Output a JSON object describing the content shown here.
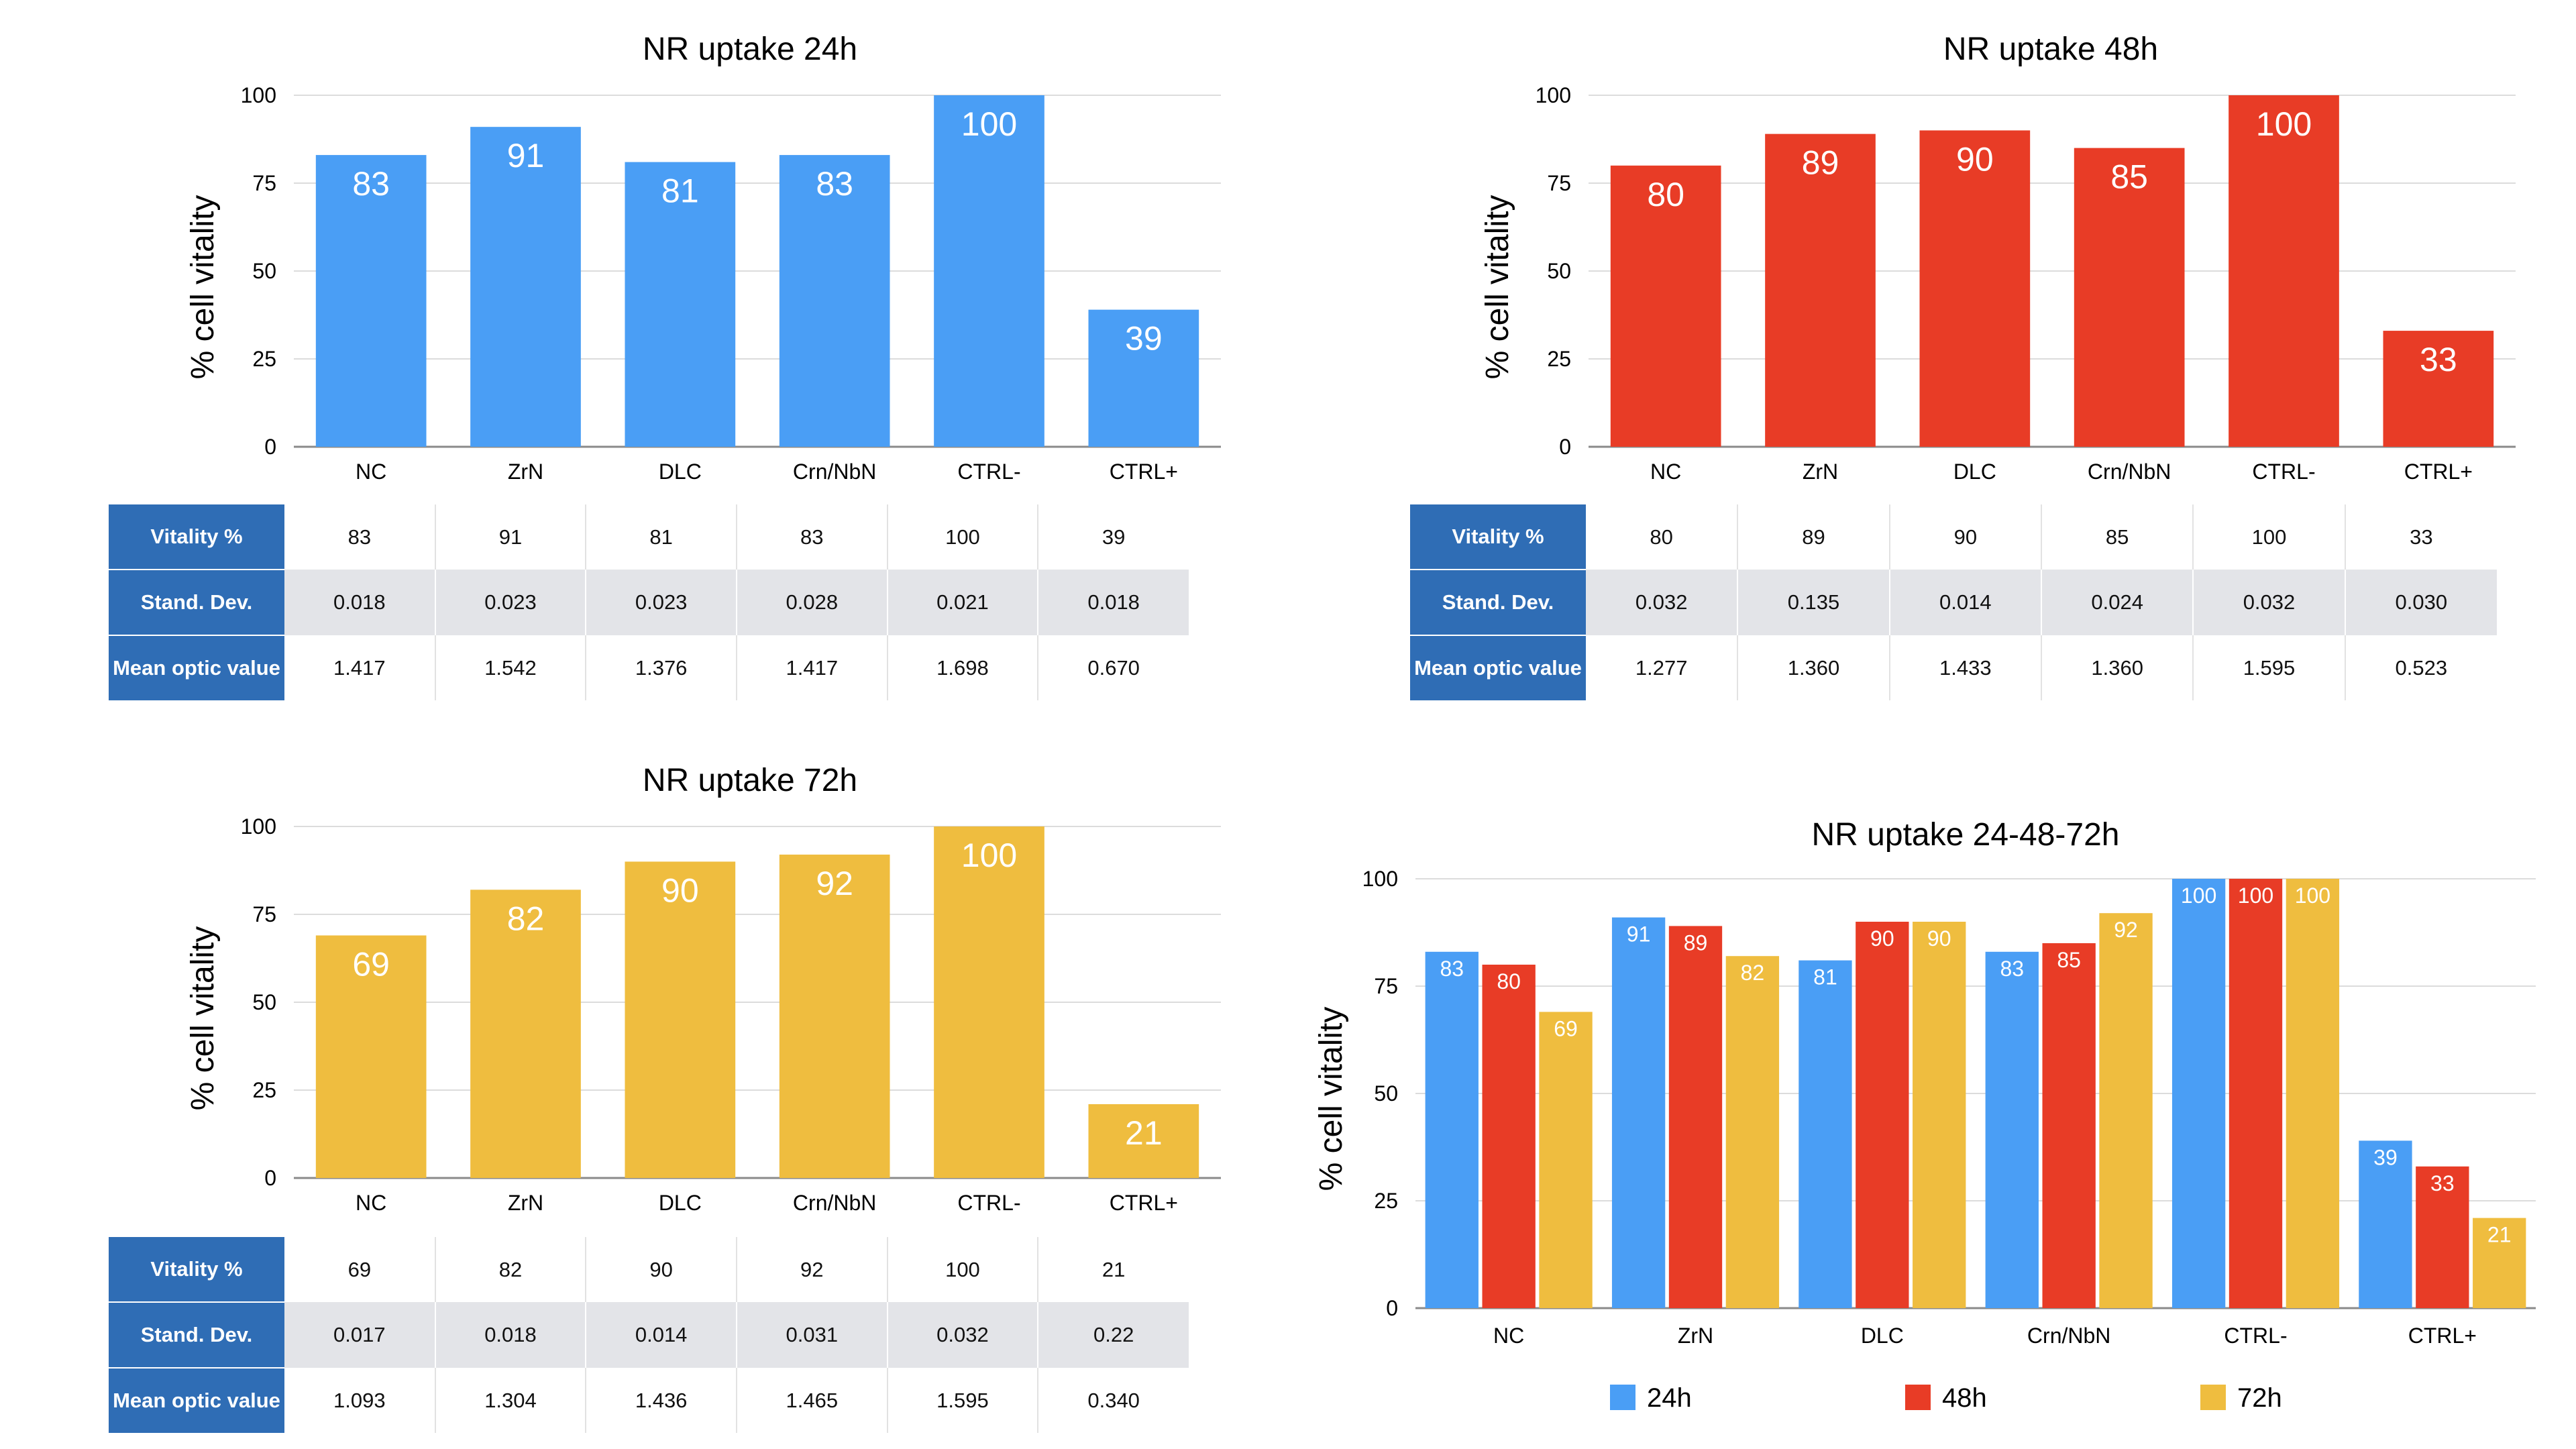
{
  "colors": {
    "24h": "#4a9ef5",
    "48h": "#e83c26",
    "72h": "#efbd3f",
    "header_blue": "#2f6db5",
    "alt_row": "#e3e4e8"
  },
  "chart_data": [
    {
      "type": "bar",
      "title": "NR uptake 24h",
      "ylabel": "% cell vitality",
      "xlabel": "",
      "categories": [
        "NC",
        "ZrN",
        "DLC",
        "Crn/NbN",
        "CTRL-",
        "CTRL+"
      ],
      "yticks": [
        "0",
        "25",
        "50",
        "75",
        "100"
      ],
      "ylim": [
        0,
        100
      ],
      "grid": true,
      "values": [
        83,
        91,
        81,
        83,
        100,
        39
      ],
      "data_labels": [
        "83",
        "91",
        "81",
        "83",
        "100",
        "39"
      ],
      "color": "#4a9ef5"
    },
    {
      "type": "bar",
      "title": "NR uptake 48h",
      "ylabel": "% cell vitality",
      "xlabel": "",
      "categories": [
        "NC",
        "ZrN",
        "DLC",
        "Crn/NbN",
        "CTRL-",
        "CTRL+"
      ],
      "yticks": [
        "0",
        "25",
        "50",
        "75",
        "100"
      ],
      "ylim": [
        0,
        100
      ],
      "grid": true,
      "values": [
        80,
        89,
        90,
        85,
        100,
        33
      ],
      "data_labels": [
        "80",
        "89",
        "90",
        "85",
        "100",
        "33"
      ],
      "color": "#e83c26"
    },
    {
      "type": "bar",
      "title": "NR uptake 72h",
      "ylabel": "% cell vitality",
      "xlabel": "",
      "categories": [
        "NC",
        "ZrN",
        "DLC",
        "Crn/NbN",
        "CTRL-",
        "CTRL+"
      ],
      "yticks": [
        "0",
        "25",
        "50",
        "75",
        "100"
      ],
      "ylim": [
        0,
        100
      ],
      "grid": true,
      "values": [
        69,
        82,
        90,
        92,
        100,
        21
      ],
      "data_labels": [
        "69",
        "82",
        "90",
        "92",
        "100",
        "21"
      ],
      "color": "#efbd3f"
    },
    {
      "type": "bar",
      "title": "NR uptake 24-48-72h",
      "ylabel": "% cell vitality",
      "xlabel": "",
      "categories": [
        "NC",
        "ZrN",
        "DLC",
        "Crn/NbN",
        "CTRL-",
        "CTRL+"
      ],
      "yticks": [
        "0",
        "25",
        "50",
        "75",
        "100"
      ],
      "ylim": [
        0,
        100
      ],
      "grid": true,
      "legend": "bottom",
      "series": [
        {
          "name": "24h",
          "color": "#4a9ef5",
          "values": [
            83,
            91,
            81,
            83,
            100,
            39
          ],
          "data_labels": [
            "83",
            "91",
            "81",
            "83",
            "100",
            "39"
          ]
        },
        {
          "name": "48h",
          "color": "#e83c26",
          "values": [
            80,
            89,
            90,
            85,
            100,
            33
          ],
          "data_labels": [
            "80",
            "89",
            "90",
            "85",
            "100",
            "33"
          ]
        },
        {
          "name": "72h",
          "color": "#efbd3f",
          "values": [
            69,
            82,
            90,
            92,
            100,
            21
          ],
          "data_labels": [
            "69",
            "82",
            "90",
            "92",
            "100",
            "21"
          ]
        }
      ]
    }
  ],
  "tables": [
    {
      "rows": [
        {
          "header": "Vitality %",
          "cells": [
            "83",
            "91",
            "81",
            "83",
            "100",
            "39"
          ]
        },
        {
          "header": "Stand. Dev.",
          "cells": [
            "0.018",
            "0.023",
            "0.023",
            "0.028",
            "0.021",
            "0.018"
          ]
        },
        {
          "header": "Mean optic value",
          "cells": [
            "1.417",
            "1.542",
            "1.376",
            "1.417",
            "1.698",
            "0.670"
          ]
        }
      ]
    },
    {
      "rows": [
        {
          "header": "Vitality %",
          "cells": [
            "80",
            "89",
            "90",
            "85",
            "100",
            "33"
          ]
        },
        {
          "header": "Stand. Dev.",
          "cells": [
            "0.032",
            "0.135",
            "0.014",
            "0.024",
            "0.032",
            "0.030"
          ]
        },
        {
          "header": "Mean optic value",
          "cells": [
            "1.277",
            "1.360",
            "1.433",
            "1.360",
            "1.595",
            "0.523"
          ]
        }
      ]
    },
    {
      "rows": [
        {
          "header": "Vitality %",
          "cells": [
            "69",
            "82",
            "90",
            "92",
            "100",
            "21"
          ]
        },
        {
          "header": "Stand. Dev.",
          "cells": [
            "0.017",
            "0.018",
            "0.014",
            "0.031",
            "0.032",
            "0.22"
          ]
        },
        {
          "header": "Mean optic value",
          "cells": [
            "1.093",
            "1.304",
            "1.436",
            "1.465",
            "1.595",
            "0.340"
          ]
        }
      ]
    }
  ]
}
